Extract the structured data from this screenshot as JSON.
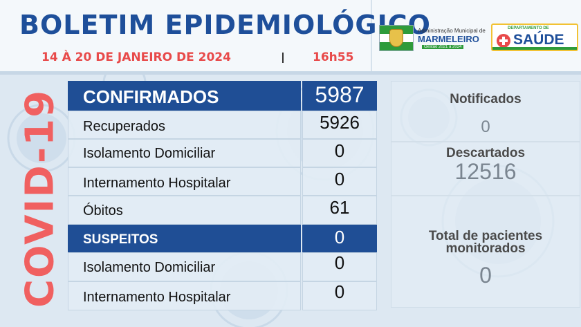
{
  "header": {
    "title": "BOLETIM EPIDEMIOLÓGICO",
    "date_range": "14 À 20 DE JANEIRO DE 2024",
    "time": "16h55"
  },
  "logos": {
    "admin": {
      "line1": "Administração Municipal de",
      "line2": "MARMELEIRO",
      "line3": "Gestão 2021 a 2024"
    },
    "saude": {
      "dept": "DEPARTAMENTO DE",
      "word": "SAÚDE"
    }
  },
  "side_title": "COVID-19",
  "table": {
    "confirmados": {
      "label": "CONFIRMADOS",
      "value": "5987"
    },
    "recuperados": {
      "label": "Recuperados",
      "value": "5926"
    },
    "isolamento_conf": {
      "label": "Isolamento Domiciliar",
      "value": "0"
    },
    "internamento_conf": {
      "label": "Internamento Hospitalar",
      "value": "0"
    },
    "obitos": {
      "label": "Óbitos",
      "value": "61"
    },
    "suspeitos": {
      "label": "SUSPEITOS",
      "value": "0"
    },
    "isolamento_susp": {
      "label": "Isolamento Domiciliar",
      "value": "0"
    },
    "internamento_susp": {
      "label": "Internamento Hospitalar",
      "value": "0"
    }
  },
  "summary": {
    "notificados": {
      "label": "Notificados",
      "value": "0"
    },
    "descartados": {
      "label": "Descartados",
      "value": "12516"
    },
    "monitorados": {
      "label_line1": "Total de pacientes",
      "label_line2": "monitorados",
      "value": "0"
    }
  },
  "colors": {
    "primary_blue": "#1f4e95",
    "accent_red": "#e84a4a",
    "background": "#dde8f2"
  }
}
